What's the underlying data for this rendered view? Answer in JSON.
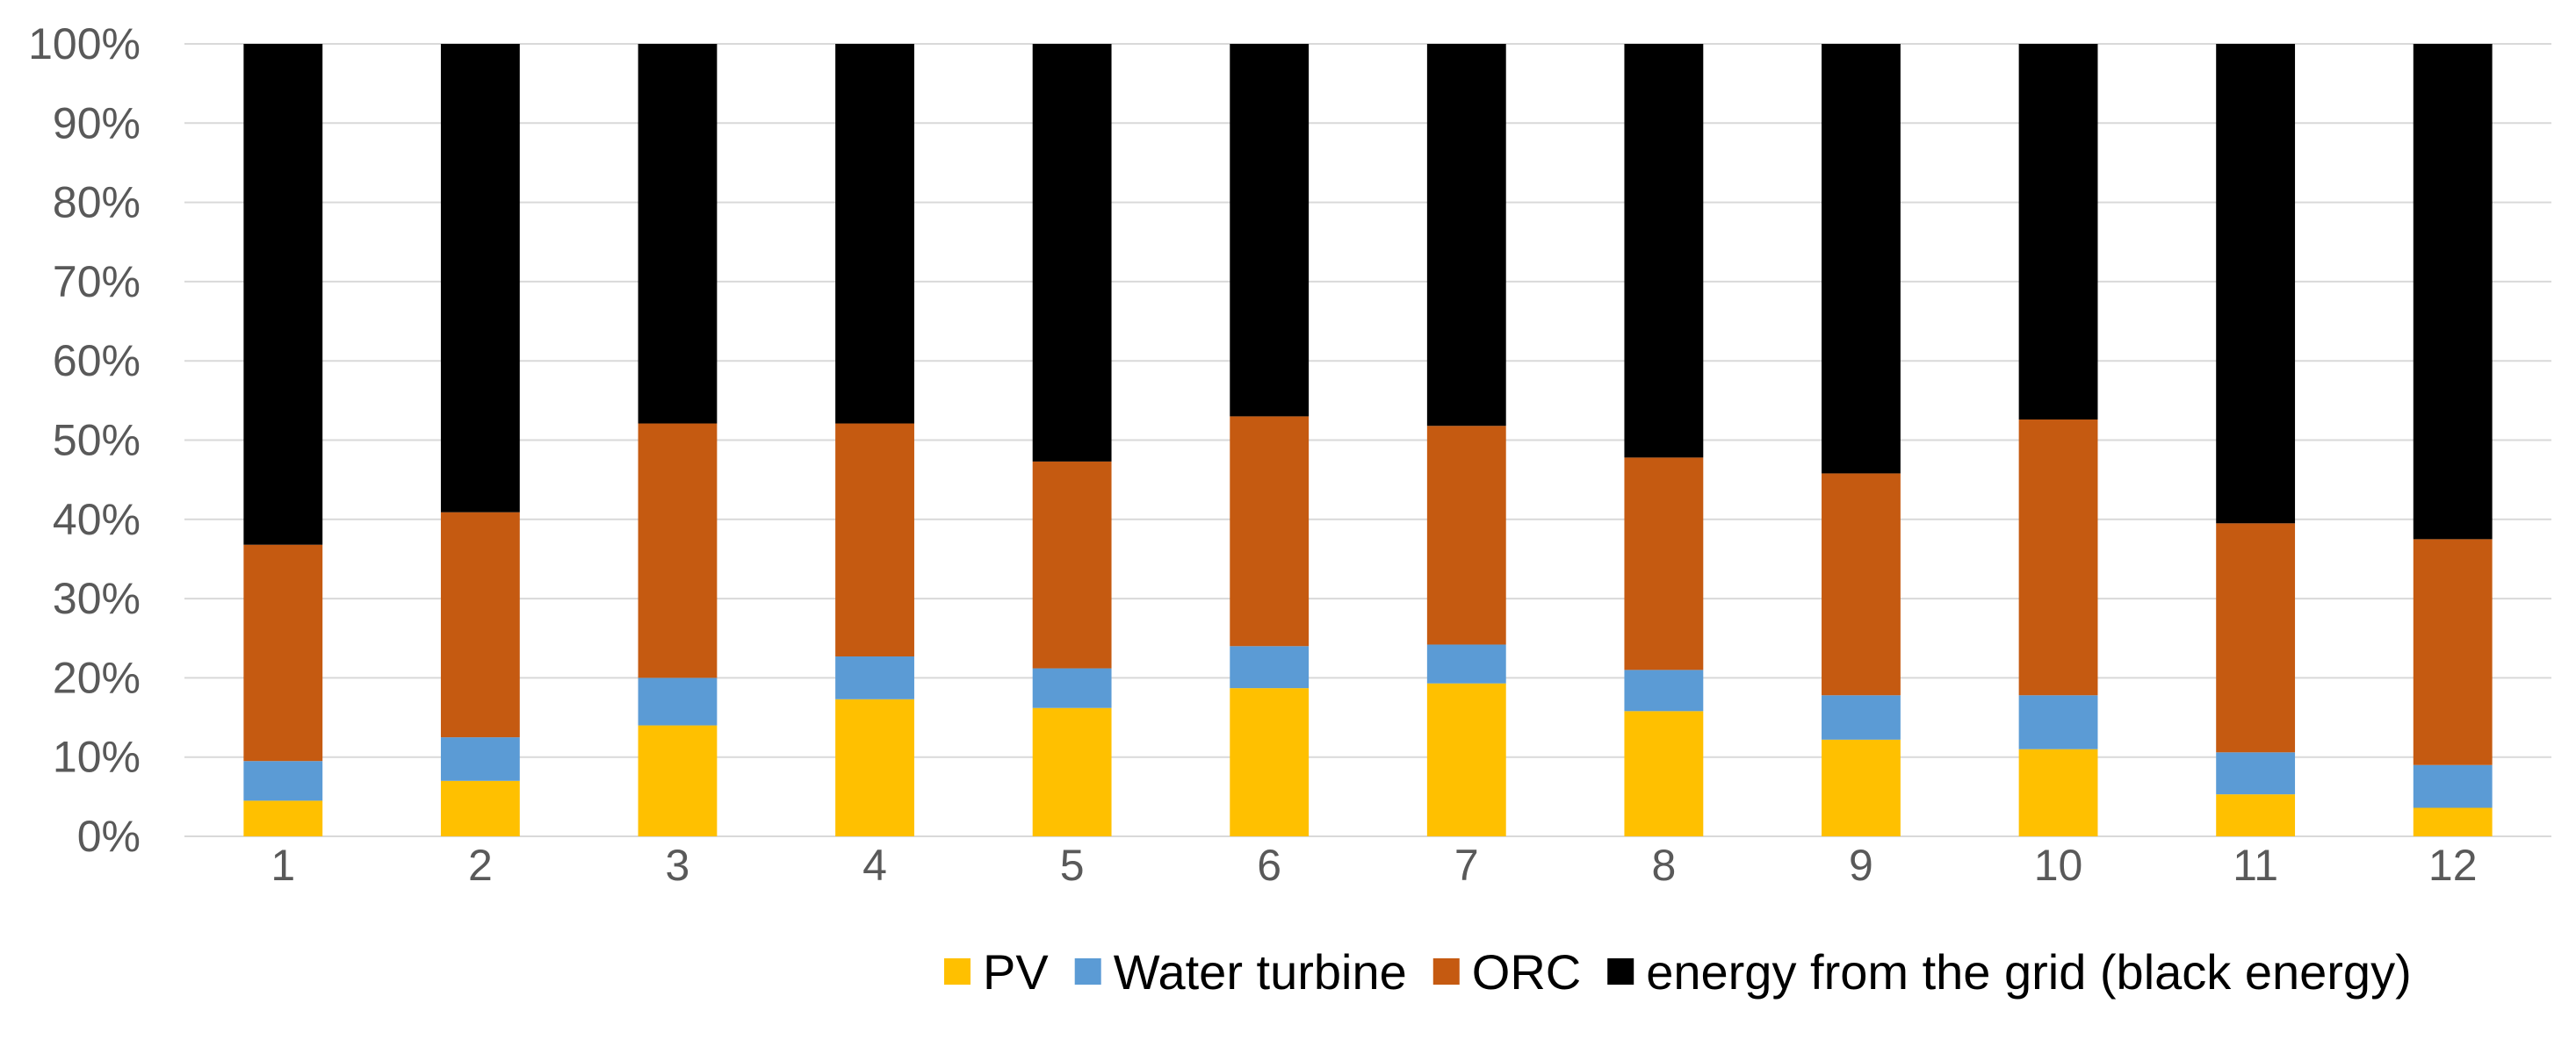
{
  "chart_data": {
    "type": "stacked-bar-100",
    "title": "",
    "xlabel": "",
    "ylabel": "",
    "ylim": [
      0,
      100
    ],
    "y_ticks": [
      "0%",
      "10%",
      "20%",
      "30%",
      "40%",
      "50%",
      "60%",
      "70%",
      "80%",
      "90%",
      "100%"
    ],
    "categories": [
      "1",
      "2",
      "3",
      "4",
      "5",
      "6",
      "7",
      "8",
      "9",
      "10",
      "11",
      "12"
    ],
    "series": [
      {
        "name": "PV",
        "color": "#ffc000",
        "values": [
          4.5,
          7.0,
          14.0,
          17.3,
          16.2,
          18.7,
          19.3,
          15.8,
          12.2,
          11.0,
          5.3,
          3.6
        ]
      },
      {
        "name": "Water turbine",
        "color": "#5b9bd5",
        "values": [
          5.0,
          5.5,
          6.0,
          5.4,
          5.0,
          5.3,
          4.9,
          5.2,
          5.6,
          6.8,
          5.3,
          5.4
        ]
      },
      {
        "name": "ORC",
        "color": "#c55a11",
        "values": [
          27.3,
          28.4,
          32.1,
          29.4,
          26.1,
          29.0,
          27.6,
          26.8,
          28.0,
          34.8,
          28.9,
          28.5
        ]
      },
      {
        "name": "energy from the grid (black energy)",
        "color": "#000000",
        "values": [
          63.2,
          59.1,
          47.9,
          47.9,
          52.7,
          47.0,
          48.2,
          52.2,
          54.2,
          47.4,
          60.5,
          62.5
        ]
      }
    ],
    "legend_position": "bottom"
  }
}
